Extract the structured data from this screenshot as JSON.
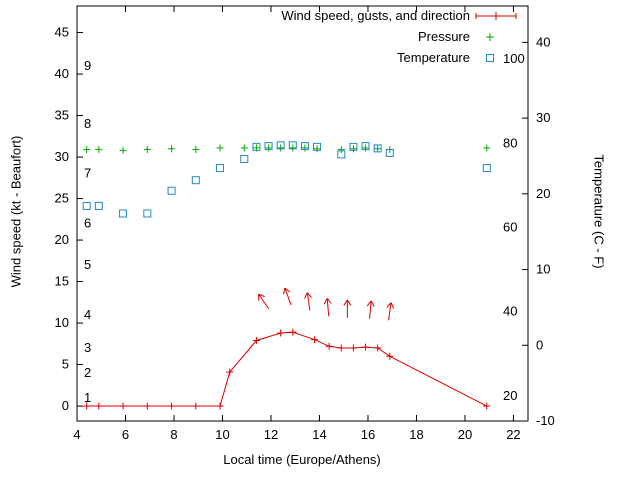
{
  "chart_data": {
    "type": "line",
    "title": "",
    "xlabel": "Local time (Europe/Athens)",
    "ylabel_left": "Wind speed (kt - Beaufort)",
    "ylabel_right": "Temperature (C - F)",
    "xlim": [
      4,
      22.6
    ],
    "ylim_left": [
      -1.8,
      48.2
    ],
    "ylim_right": [
      -10,
      44.8
    ],
    "xticks": [
      4,
      6,
      8,
      10,
      12,
      14,
      16,
      18,
      20,
      22
    ],
    "yticks_left": [
      0,
      5,
      10,
      15,
      20,
      25,
      30,
      35,
      40,
      45
    ],
    "yticks_right": [
      -10,
      0,
      10,
      20,
      30,
      40
    ],
    "grid": false,
    "legend_position": "top-right-inside",
    "legend": [
      {
        "label": "Wind speed, gusts, and direction",
        "color": "#dd0000",
        "marker": "plus-errorbar-line"
      },
      {
        "label": "Pressure",
        "color": "#00aa00",
        "marker": "plus"
      },
      {
        "label": "Temperature",
        "color": "#2288cc",
        "marker": "open-square"
      }
    ],
    "beaufort_scale_labels": [
      {
        "label": "1",
        "kt": 1
      },
      {
        "label": "2",
        "kt": 4
      },
      {
        "label": "3",
        "kt": 7
      },
      {
        "label": "4",
        "kt": 11
      },
      {
        "label": "5",
        "kt": 17
      },
      {
        "label": "6",
        "kt": 22
      },
      {
        "label": "7",
        "kt": 28
      },
      {
        "label": "8",
        "kt": 34
      },
      {
        "label": "9",
        "kt": 41
      }
    ],
    "fahrenheit_scale_labels": [
      {
        "label": "20",
        "f": 20
      },
      {
        "label": "40",
        "f": 40
      },
      {
        "label": "60",
        "f": 60
      },
      {
        "label": "80",
        "f": 80
      },
      {
        "label": "100",
        "f": 100
      }
    ],
    "series": [
      {
        "name": "Wind speed, gusts, and direction",
        "axis": "left",
        "unit": "kt",
        "color": "#dd0000",
        "marker": "plus",
        "line": true,
        "points": [
          [
            4.4,
            0
          ],
          [
            4.9,
            0
          ],
          [
            5.9,
            0
          ],
          [
            6.9,
            0
          ],
          [
            7.9,
            0
          ],
          [
            8.9,
            0
          ],
          [
            9.9,
            0
          ],
          [
            10.3,
            4.1
          ],
          [
            11.4,
            7.9
          ],
          [
            12.4,
            8.8
          ],
          [
            12.9,
            8.9
          ],
          [
            13.8,
            8.0
          ],
          [
            14.4,
            7.2
          ],
          [
            14.9,
            7.0
          ],
          [
            15.4,
            7.0
          ],
          [
            15.9,
            7.1
          ],
          [
            16.4,
            7.0
          ],
          [
            16.9,
            6.0
          ],
          [
            20.9,
            0
          ]
        ]
      },
      {
        "name": "Pressure",
        "axis": "left",
        "unit": "plotted-on-kt-axis",
        "color": "#00aa00",
        "marker": "plus",
        "line": false,
        "points": [
          [
            4.4,
            30.9
          ],
          [
            4.9,
            30.9
          ],
          [
            5.9,
            30.8
          ],
          [
            6.9,
            30.9
          ],
          [
            7.9,
            31.0
          ],
          [
            8.9,
            30.9
          ],
          [
            9.9,
            31.1
          ],
          [
            10.9,
            31.1
          ],
          [
            11.4,
            31.1
          ],
          [
            11.9,
            31.1
          ],
          [
            12.4,
            31.1
          ],
          [
            12.9,
            31.1
          ],
          [
            13.4,
            31.1
          ],
          [
            13.9,
            31.0
          ],
          [
            14.9,
            30.9
          ],
          [
            15.4,
            31.0
          ],
          [
            15.9,
            31.1
          ],
          [
            16.4,
            31.0
          ],
          [
            16.9,
            30.9
          ],
          [
            20.9,
            31.1
          ]
        ]
      },
      {
        "name": "Temperature",
        "axis": "right",
        "unit": "C",
        "color": "#2288cc",
        "marker": "open-square",
        "line": false,
        "points": [
          [
            4.4,
            18.4
          ],
          [
            4.9,
            18.4
          ],
          [
            5.9,
            17.4
          ],
          [
            6.9,
            17.4
          ],
          [
            7.9,
            20.4
          ],
          [
            8.9,
            21.8
          ],
          [
            9.9,
            23.4
          ],
          [
            10.9,
            24.6
          ],
          [
            11.4,
            26.2
          ],
          [
            11.9,
            26.3
          ],
          [
            12.4,
            26.4
          ],
          [
            12.9,
            26.4
          ],
          [
            13.4,
            26.3
          ],
          [
            13.9,
            26.2
          ],
          [
            14.9,
            25.2
          ],
          [
            15.4,
            26.2
          ],
          [
            15.9,
            26.3
          ],
          [
            16.4,
            26.0
          ],
          [
            16.9,
            25.4
          ],
          [
            20.9,
            23.4
          ]
        ]
      }
    ],
    "wind_direction_arrows": [
      {
        "t": 11.7,
        "kt": 12.6,
        "angle_deg": -35
      },
      {
        "t": 12.7,
        "kt": 13.2,
        "angle_deg": -20
      },
      {
        "t": 13.55,
        "kt": 12.6,
        "angle_deg": -8
      },
      {
        "t": 14.35,
        "kt": 11.9,
        "angle_deg": -5
      },
      {
        "t": 15.15,
        "kt": 11.7,
        "angle_deg": 0
      },
      {
        "t": 16.1,
        "kt": 11.6,
        "angle_deg": 5
      },
      {
        "t": 16.9,
        "kt": 11.4,
        "angle_deg": 8
      }
    ],
    "colors": {
      "axis": "#000000",
      "background": "#ffffff"
    }
  }
}
